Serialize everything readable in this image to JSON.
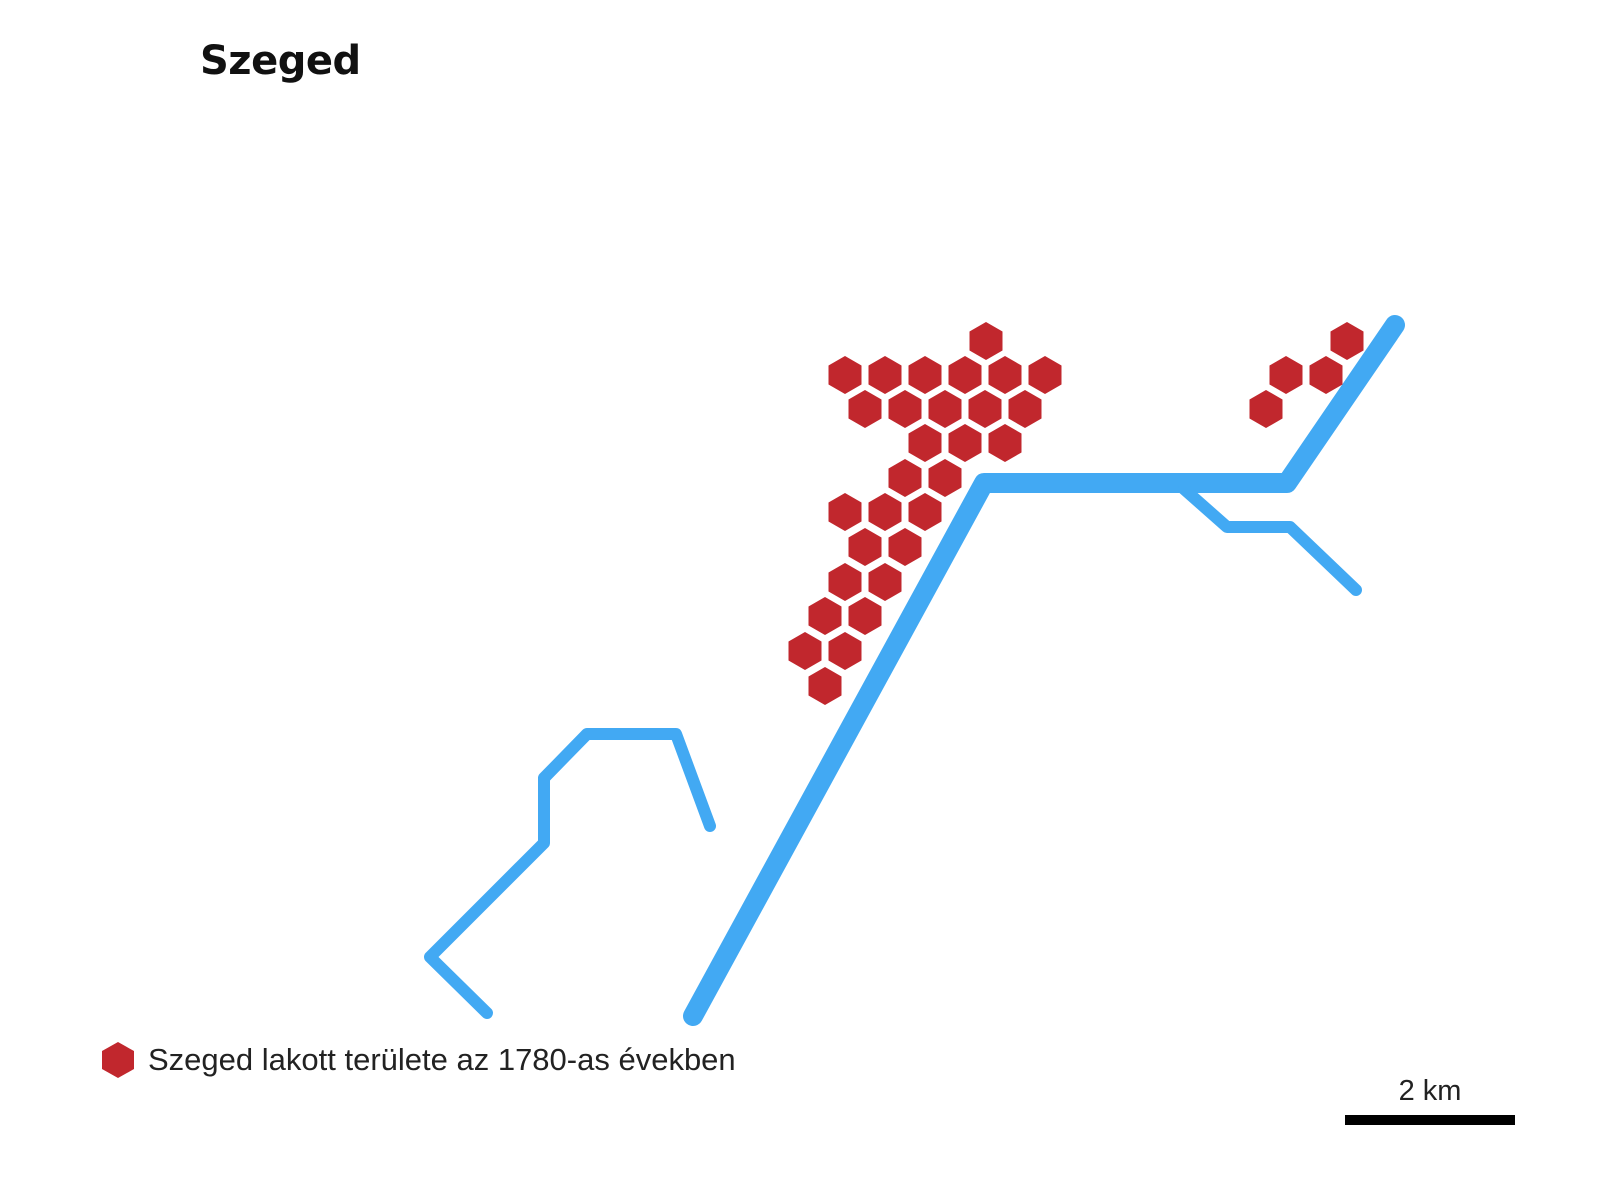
{
  "map": {
    "title": "Szeged",
    "colors": {
      "river": "#42a9f3",
      "settlement": "#c1272d",
      "background": "#ffffff"
    },
    "river_features": [
      "main-river",
      "tributary-southwest",
      "tributary-east"
    ],
    "legend": {
      "icon": "hexagon-icon",
      "label": "Szeged lakott területe az 1780-as években"
    },
    "scalebar": {
      "label": "2 km"
    }
  }
}
